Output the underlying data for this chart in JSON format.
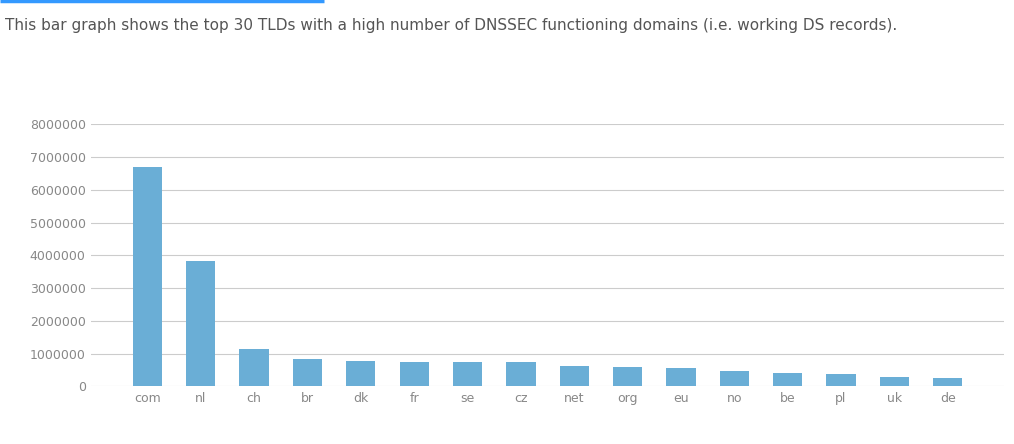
{
  "subtitle": "This bar graph shows the top 30 TLDs with a high number of DNSSEC functioning domains (i.e. working DS records).",
  "categories": [
    "com",
    "nl",
    "ch",
    "br",
    "dk",
    "fr",
    "se",
    "cz",
    "net",
    "org",
    "eu",
    "no",
    "be",
    "pl",
    "uk",
    "de"
  ],
  "values": [
    6700000,
    3820000,
    1150000,
    840000,
    780000,
    740000,
    740000,
    730000,
    630000,
    590000,
    560000,
    460000,
    420000,
    370000,
    290000,
    240000
  ],
  "bar_color": "#6aaed6",
  "background_color": "#ffffff",
  "ylim": [
    0,
    8000000
  ],
  "yticks": [
    0,
    1000000,
    2000000,
    3000000,
    4000000,
    5000000,
    6000000,
    7000000,
    8000000
  ],
  "grid_color": "#cccccc",
  "text_color": "#888888",
  "subtitle_color": "#555555",
  "accent_color": "#3399ff",
  "subtitle_fontsize": 11,
  "tick_fontsize": 9,
  "bar_width": 0.55
}
